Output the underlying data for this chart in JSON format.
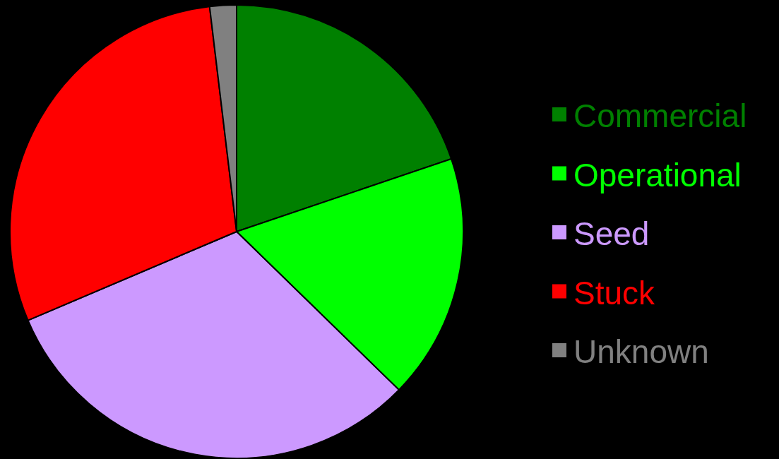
{
  "chart_data": {
    "type": "pie",
    "categories": [
      "Commercial",
      "Operational",
      "Seed",
      "Stuck",
      "Unknown"
    ],
    "values": [
      19.8,
      17.5,
      31.3,
      29.5,
      1.9
    ],
    "colors": [
      "#008000",
      "#00ff00",
      "#cc99ff",
      "#ff0000",
      "#808080"
    ],
    "legend": "right"
  }
}
